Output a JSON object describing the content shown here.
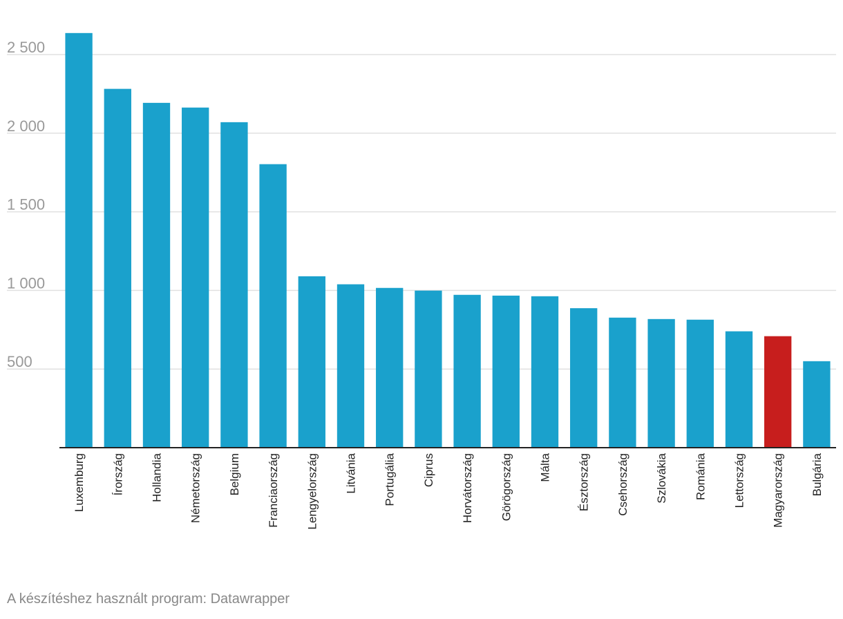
{
  "chart_data": {
    "type": "bar",
    "title": "",
    "xlabel": "",
    "ylabel": "",
    "categories": [
      "Luxemburg",
      "Írország",
      "Hollandia",
      "Németország",
      "Belgium",
      "Franciaország",
      "Lengyelország",
      "Litvánia",
      "Portugália",
      "Ciprus",
      "Horvátország",
      "Görögország",
      "Málta",
      "Észtország",
      "Csehország",
      "Szlovákia",
      "Románia",
      "Lettország",
      "Magyarország",
      "Bulgária"
    ],
    "values": [
      2637,
      2282,
      2193,
      2163,
      2070,
      1803,
      1090,
      1039,
      1016,
      999,
      972,
      967,
      963,
      887,
      827,
      818,
      814,
      740,
      709,
      550
    ],
    "ylim": [
      0,
      2700
    ],
    "yticks": [
      500,
      1000,
      1500,
      2000,
      2500
    ],
    "ytick_labels": [
      "500",
      "1 000",
      "1 500",
      "2 000",
      "2 500"
    ],
    "highlight_category": "Magyarország",
    "grid": true,
    "legend": "none",
    "colors": {
      "bar": "#1aa1cc",
      "highlight": "#c71e1d",
      "grid": "#e0e0e0",
      "axis": "#222222"
    }
  },
  "footer": {
    "credit": "A készítéshez használt program: Datawrapper"
  }
}
